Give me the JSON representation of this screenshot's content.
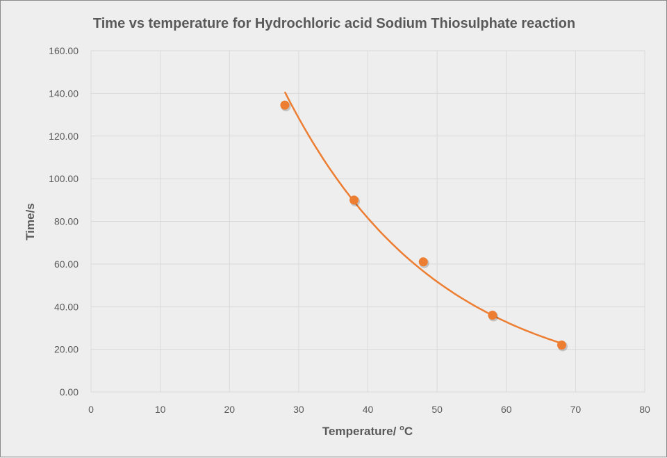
{
  "chart_data": {
    "type": "scatter",
    "title": "Time vs temperature for Hydrochloric acid Sodium Thiosulphate reaction",
    "xlabel": "Temperature/ ",
    "xlabel_degree": "o",
    "xlabel_unit": "C",
    "ylabel": "Time/s",
    "xlim": [
      0,
      80
    ],
    "ylim": [
      0,
      160
    ],
    "xticks": [
      "0",
      "10",
      "20",
      "30",
      "40",
      "50",
      "60",
      "70",
      "80"
    ],
    "yticks": [
      "0.00",
      "20.00",
      "40.00",
      "60.00",
      "80.00",
      "100.00",
      "120.00",
      "140.00",
      "160.00"
    ],
    "grid": true,
    "legend": "none",
    "points": [
      {
        "x": 28,
        "y": 134.5
      },
      {
        "x": 38,
        "y": 90
      },
      {
        "x": 48,
        "y": 61
      },
      {
        "x": 58,
        "y": 36
      },
      {
        "x": 68,
        "y": 22
      }
    ],
    "trendline": {
      "type": "exponential",
      "a": 503,
      "b": -0.0455,
      "x_range": [
        28,
        68
      ]
    },
    "colors": {
      "marker": "#ed7d31",
      "trendline": "#ed7d31",
      "grid": "#d9d9d9",
      "text": "#595959"
    }
  }
}
